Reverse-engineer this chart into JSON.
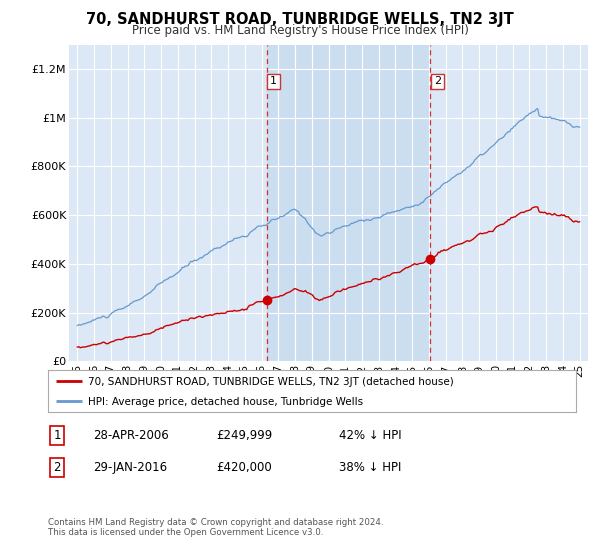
{
  "title": "70, SANDHURST ROAD, TUNBRIDGE WELLS, TN2 3JT",
  "subtitle": "Price paid vs. HM Land Registry's House Price Index (HPI)",
  "background_color": "#ffffff",
  "plot_bg_color": "#dce8f5",
  "grid_color": "#ffffff",
  "hpi_color": "#6699cc",
  "price_color": "#cc0000",
  "shade_color": "#c8ddf0",
  "ylim": [
    0,
    1300000
  ],
  "yticks": [
    0,
    200000,
    400000,
    600000,
    800000,
    1000000,
    1200000
  ],
  "ytick_labels": [
    "£0",
    "£200K",
    "£400K",
    "£600K",
    "£800K",
    "£1M",
    "£1.2M"
  ],
  "sale1_year": 2006.32,
  "sale1_price": 249999,
  "sale1_label": "1",
  "sale1_date": "28-APR-2006",
  "sale1_pct": "42% ↓ HPI",
  "sale2_year": 2016.08,
  "sale2_price": 420000,
  "sale2_label": "2",
  "sale2_date": "29-JAN-2016",
  "sale2_pct": "38% ↓ HPI",
  "legend_line1": "70, SANDHURST ROAD, TUNBRIDGE WELLS, TN2 3JT (detached house)",
  "legend_line2": "HPI: Average price, detached house, Tunbridge Wells",
  "footnote": "Contains HM Land Registry data © Crown copyright and database right 2024.\nThis data is licensed under the Open Government Licence v3.0.",
  "xmin": 1994.5,
  "xmax": 2025.5
}
